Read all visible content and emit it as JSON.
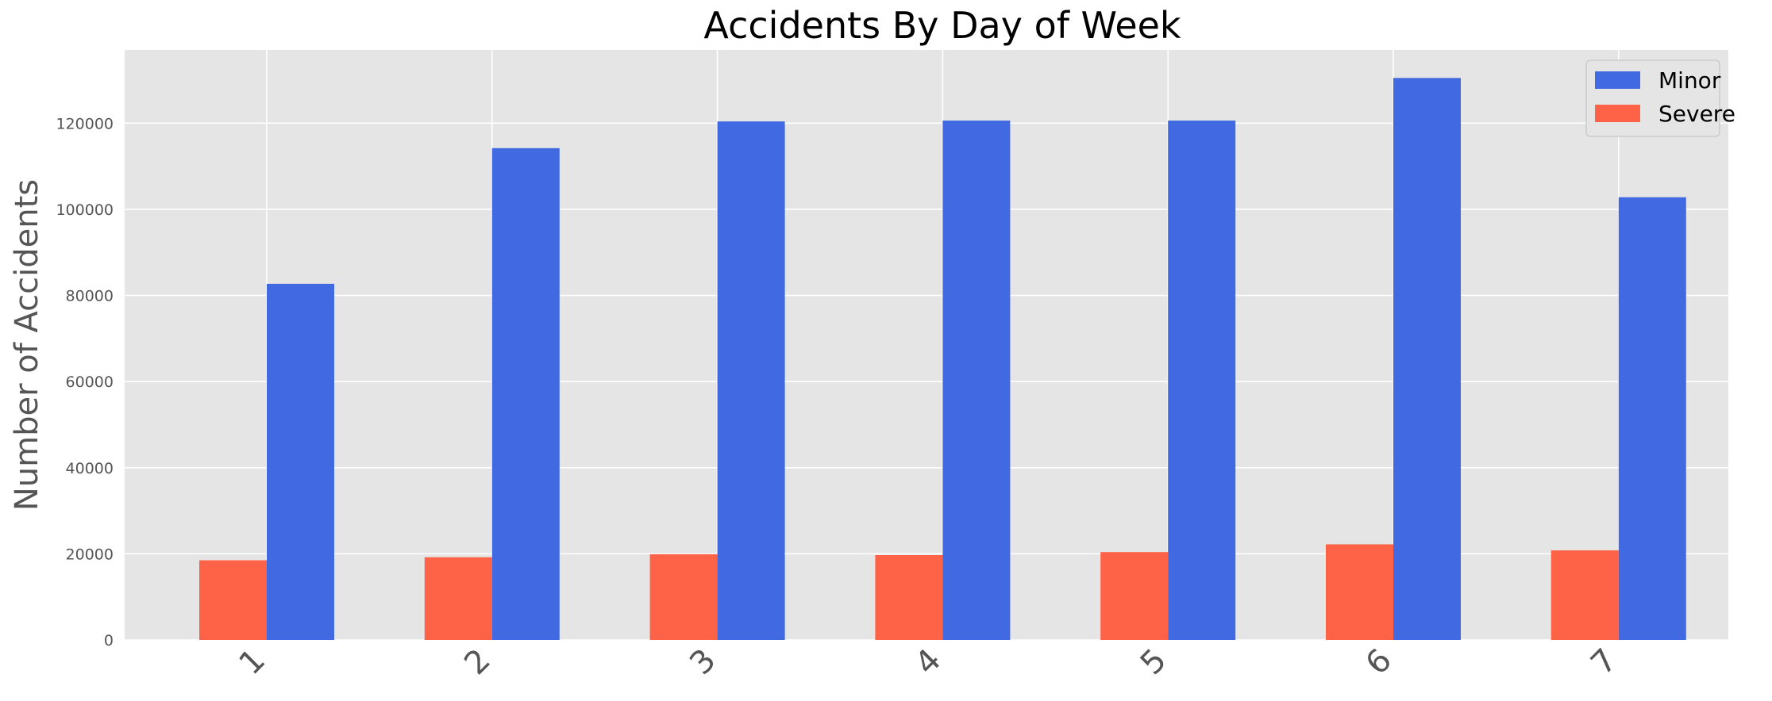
{
  "chart_data": {
    "type": "bar",
    "title": "Accidents By Day of Week",
    "xlabel": "",
    "ylabel": "Number of Accidents",
    "categories": [
      "1",
      "2",
      "3",
      "4",
      "5",
      "6",
      "7"
    ],
    "series": [
      {
        "name": "Severe",
        "color": "#ff6347",
        "values": [
          18500,
          19200,
          19900,
          19700,
          20400,
          22200,
          20800
        ]
      },
      {
        "name": "Minor",
        "color": "#4169e1",
        "values": [
          82700,
          114200,
          120400,
          120600,
          120600,
          130500,
          102800
        ]
      }
    ],
    "ylim": [
      0,
      137000
    ],
    "yticks": [
      0,
      20000,
      40000,
      60000,
      80000,
      100000,
      120000
    ],
    "legend_order": [
      "Minor",
      "Severe"
    ],
    "legend_position": "top-right",
    "grid": true,
    "background_color": "#e5e5e5",
    "grid_color": "#ffffff"
  }
}
